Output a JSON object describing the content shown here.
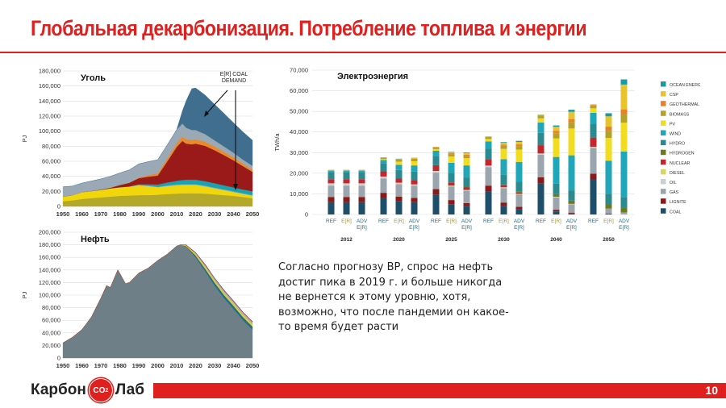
{
  "header": {
    "title": "Глобальная декарбонизация. Потребление топлива и энергии"
  },
  "note": {
    "text": "Согласно прогнозу BP, спрос на нефть достиг пика в 2019 г. и больше никогда не вернется к этому уровню, хотя, возможно, что после пандемии он какое-то время будет расти"
  },
  "footer": {
    "logo_left": "Карбон",
    "logo_badge": "CO",
    "logo_badge_sub": "2",
    "logo_right": "Лаб",
    "page_number": "10"
  },
  "colors": {
    "accent": "#e0201e"
  },
  "chart_data": [
    {
      "id": "coal",
      "type": "area",
      "title": "Уголь",
      "ylabel": "PJ",
      "ylim": [
        0,
        180000
      ],
      "yticks": [
        "0",
        "20,000",
        "40,000",
        "60,000",
        "80,000",
        "100,000",
        "120,000",
        "140,000",
        "160,000",
        "180,000"
      ],
      "xticks": [
        "1950",
        "1960",
        "1970",
        "1980",
        "1990",
        "2000",
        "2010",
        "2020",
        "2030",
        "2040",
        "2050"
      ],
      "annotation": "E[R] COAL DEMAND",
      "x": [
        1950,
        1955,
        1960,
        1965,
        1970,
        1975,
        1980,
        1985,
        1990,
        1995,
        2000,
        2005,
        2010,
        2013,
        2015,
        2018,
        2020,
        2025,
        2030,
        2035,
        2040,
        2045,
        2050
      ],
      "series": [
        {
          "color": "#b3a82a",
          "values": [
            7000,
            8000,
            10000,
            11000,
            12000,
            13000,
            14000,
            14500,
            15000,
            15000,
            15500,
            16500,
            17000,
            17500,
            17500,
            17500,
            17500,
            17000,
            16000,
            15000,
            14000,
            12500,
            11000
          ]
        },
        {
          "color": "#f2d60c",
          "values": [
            6000,
            7000,
            9000,
            9500,
            10000,
            11000,
            11500,
            12000,
            13000,
            12000,
            10000,
            10500,
            11000,
            11000,
            11000,
            11000,
            11000,
            9500,
            8000,
            6500,
            5000,
            4000,
            3000
          ]
        },
        {
          "color": "#8bb2b8",
          "values": [
            0,
            0,
            0,
            0,
            0,
            0,
            0,
            0,
            500,
            500,
            500,
            700,
            1000,
            1000,
            1000,
            1000,
            1000,
            1000,
            1000,
            1000,
            1000,
            1000,
            1000
          ]
        },
        {
          "color": "#17a3b2",
          "values": [
            0,
            0,
            0,
            0,
            0,
            0,
            0,
            0,
            1000,
            2000,
            3000,
            4000,
            5000,
            5500,
            6000,
            6000,
            6000,
            6000,
            5800,
            5500,
            5200,
            5000,
            5000
          ]
        },
        {
          "color": "#9a1a1a",
          "values": [
            0,
            0,
            0,
            200,
            500,
            1000,
            3000,
            5000,
            8000,
            10000,
            12000,
            28000,
            45000,
            52000,
            48000,
            47000,
            48000,
            47000,
            44000,
            40000,
            36000,
            31000,
            26000
          ]
        },
        {
          "color": "#e88a2c",
          "values": [
            0,
            0,
            0,
            0,
            0,
            0,
            0,
            0,
            1000,
            2000,
            3000,
            4000,
            5000,
            6000,
            6000,
            6000,
            6000,
            5500,
            5000,
            4500,
            4000,
            3500,
            3000
          ]
        },
        {
          "color": "#9aa9b5",
          "values": [
            13000,
            12000,
            12000,
            13000,
            14000,
            15000,
            16000,
            17000,
            18000,
            18000,
            18000,
            18000,
            18000,
            17000,
            15000,
            13000,
            12000,
            10000,
            8000,
            7000,
            6000,
            5000,
            5000
          ]
        },
        {
          "color": "#3f6e8f",
          "values": [
            0,
            0,
            0,
            0,
            0,
            0,
            0,
            0,
            0,
            0,
            0,
            0,
            0,
            17000,
            36000,
            55000,
            56000,
            52000,
            48000,
            44000,
            40000,
            37000,
            34000
          ]
        }
      ]
    },
    {
      "id": "oil",
      "type": "area",
      "title": "Нефть",
      "ylabel": "PJ",
      "ylim": [
        0,
        200000
      ],
      "yticks": [
        "0",
        "20,000",
        "40,000",
        "60,000",
        "80,000",
        "100,000",
        "120,000",
        "140,000",
        "160,000",
        "180,000",
        "200,000"
      ],
      "xticks": [
        "1950",
        "1960",
        "1970",
        "1980",
        "1990",
        "2000",
        "2010",
        "2020",
        "2030",
        "2040",
        "2050"
      ],
      "x": [
        1950,
        1955,
        1960,
        1965,
        1970,
        1973,
        1975,
        1979,
        1983,
        1985,
        1990,
        1995,
        2000,
        2005,
        2010,
        2012,
        2015,
        2020,
        2025,
        2030,
        2035,
        2040,
        2045,
        2050
      ],
      "series": [
        {
          "color": "#6f7f88",
          "values": [
            24000,
            33000,
            45000,
            65000,
            95000,
            115000,
            112000,
            140000,
            118000,
            120000,
            135000,
            143000,
            155000,
            165000,
            178000,
            180000,
            177000,
            160000,
            138000,
            115000,
            95000,
            78000,
            60000,
            45000
          ]
        },
        {
          "color": "#1d6f8e",
          "values": [
            0,
            0,
            0,
            0,
            0,
            0,
            0,
            0,
            0,
            0,
            0,
            0,
            0,
            0,
            0,
            0,
            1000,
            3000,
            4000,
            5000,
            5000,
            5000,
            5000,
            5000
          ]
        },
        {
          "color": "#f0d30a",
          "values": [
            0,
            0,
            0,
            0,
            0,
            0,
            0,
            0,
            0,
            0,
            0,
            0,
            0,
            0,
            0,
            0,
            1000,
            2000,
            3000,
            3000,
            3000,
            3000,
            3000,
            3000
          ]
        },
        {
          "color": "#aab4ba",
          "values": [
            0,
            0,
            0,
            0,
            0,
            0,
            0,
            0,
            0,
            0,
            0,
            0,
            0,
            0,
            0,
            0,
            500,
            2000,
            3000,
            3500,
            4000,
            4000,
            4000,
            4000
          ]
        },
        {
          "color": "#8b1f1f",
          "values": [
            0,
            0,
            0,
            0,
            0,
            0,
            0,
            0,
            0,
            0,
            0,
            0,
            0,
            0,
            0,
            0,
            500,
            800,
            1000,
            1000,
            1000,
            1000,
            1000,
            1000
          ]
        }
      ]
    },
    {
      "id": "electricity",
      "type": "bar",
      "stacked": true,
      "title": "Электроэнергия",
      "ylabel": "TWh/a",
      "ylim": [
        0,
        70000
      ],
      "yticks": [
        "0",
        "10,000",
        "20,000",
        "30,000",
        "40,000",
        "50,000",
        "60,000",
        "70,000"
      ],
      "years": [
        "2012",
        "2020",
        "2025",
        "2030",
        "2040",
        "2050"
      ],
      "scenarios": [
        {
          "lines": [
            "REF"
          ],
          "color": "#1b6f91"
        },
        {
          "lines": [
            "E[R]"
          ],
          "color": "#a49a2a"
        },
        {
          "lines": [
            "ADV",
            "E[R]"
          ],
          "color": "#1b6f91"
        }
      ],
      "legend_position": "right",
      "legend": [
        {
          "label": "OCEAN ENERGY",
          "color": "#1a9aa3"
        },
        {
          "label": "CSP",
          "color": "#e8c42c"
        },
        {
          "label": "GEOTHERMAL",
          "color": "#e8822a"
        },
        {
          "label": "BIOMASS",
          "color": "#b5a02a"
        },
        {
          "label": "PV",
          "color": "#f2dc20"
        },
        {
          "label": "WIND",
          "color": "#1fa6b8"
        },
        {
          "label": "HYDRO",
          "color": "#2a8a8f"
        },
        {
          "label": "HYDROGEN",
          "color": "#6b7a1e"
        },
        {
          "label": "NUCLEAR",
          "color": "#c2272d"
        },
        {
          "label": "DIESEL",
          "color": "#d9d65a"
        },
        {
          "label": "OIL",
          "color": "#c9d0d4"
        },
        {
          "label": "GAS",
          "color": "#9aa5ad"
        },
        {
          "label": "LIGNITE",
          "color": "#8a1a1a"
        },
        {
          "label": "COAL",
          "color": "#1d4f6b"
        }
      ],
      "stack_order": [
        "COAL",
        "LIGNITE",
        "GAS",
        "OIL",
        "DIESEL",
        "NUCLEAR",
        "HYDROGEN",
        "HYDRO",
        "WIND",
        "PV",
        "BIOMASS",
        "GEOTHERMAL",
        "CSP",
        "OCEAN ENERGY"
      ],
      "bars": [
        {
          "year": "2012",
          "scenario": "REF",
          "values": [
            6000,
            2500,
            5500,
            1000,
            100,
            2000,
            0,
            3500,
            500,
            100,
            400,
            60,
            10,
            0
          ]
        },
        {
          "year": "2012",
          "scenario": "E[R]",
          "values": [
            6000,
            2500,
            5500,
            1000,
            100,
            2000,
            0,
            3500,
            500,
            100,
            400,
            60,
            10,
            0
          ]
        },
        {
          "year": "2012",
          "scenario": "ADV E[R]",
          "values": [
            6000,
            2500,
            5500,
            1000,
            100,
            2000,
            0,
            3500,
            500,
            100,
            400,
            60,
            10,
            0
          ]
        },
        {
          "year": "2020",
          "scenario": "REF",
          "values": [
            8000,
            2500,
            7000,
            800,
            100,
            2500,
            0,
            4000,
            1500,
            500,
            700,
            100,
            50,
            0
          ]
        },
        {
          "year": "2020",
          "scenario": "E[R]",
          "values": [
            6500,
            2200,
            6000,
            600,
            100,
            2000,
            0,
            4200,
            2500,
            1500,
            1000,
            200,
            200,
            50
          ]
        },
        {
          "year": "2020",
          "scenario": "ADV E[R]",
          "values": [
            6000,
            2000,
            6000,
            500,
            100,
            2000,
            0,
            4200,
            3000,
            2000,
            1000,
            300,
            300,
            100
          ]
        },
        {
          "year": "2025",
          "scenario": "REF",
          "values": [
            9500,
            2800,
            8000,
            700,
            100,
            2800,
            0,
            4500,
            2500,
            800,
            900,
            150,
            80,
            0
          ]
        },
        {
          "year": "2025",
          "scenario": "E[R]",
          "values": [
            5000,
            2000,
            6500,
            400,
            100,
            1500,
            100,
            4500,
            5000,
            3000,
            1200,
            400,
            500,
            200
          ]
        },
        {
          "year": "2025",
          "scenario": "ADV E[R]",
          "values": [
            4000,
            1500,
            6000,
            300,
            100,
            1200,
            200,
            4500,
            6000,
            3500,
            1200,
            500,
            700,
            300
          ]
        },
        {
          "year": "2030",
          "scenario": "REF",
          "values": [
            11000,
            3000,
            9000,
            600,
            100,
            3200,
            0,
            5000,
            3500,
            1200,
            1000,
            200,
            100,
            0
          ]
        },
        {
          "year": "2030",
          "scenario": "E[R]",
          "values": [
            4000,
            1800,
            7000,
            300,
            100,
            1000,
            300,
            4800,
            7500,
            5000,
            1500,
            600,
            900,
            300
          ]
        },
        {
          "year": "2030",
          "scenario": "ADV E[R]",
          "values": [
            2500,
            1200,
            6000,
            200,
            100,
            700,
            500,
            4800,
            9500,
            6000,
            1700,
            800,
            1200,
            500
          ]
        },
        {
          "year": "2040",
          "scenario": "REF",
          "values": [
            15000,
            3000,
            11000,
            500,
            100,
            4000,
            0,
            6000,
            5000,
            2000,
            1200,
            300,
            200,
            100
          ]
        },
        {
          "year": "2040",
          "scenario": "E[R]",
          "values": [
            1500,
            800,
            6000,
            200,
            100,
            300,
            1000,
            5000,
            13000,
            9000,
            2500,
            1200,
            2000,
            600
          ]
        },
        {
          "year": "2040",
          "scenario": "ADV E[R]",
          "values": [
            500,
            400,
            4000,
            100,
            100,
            100,
            1500,
            5000,
            17000,
            13000,
            3000,
            1600,
            3500,
            1000
          ]
        },
        {
          "year": "2050",
          "scenario": "REF",
          "values": [
            17000,
            2800,
            12500,
            400,
            100,
            4500,
            0,
            6500,
            5500,
            2200,
            1300,
            300,
            200,
            100
          ]
        },
        {
          "year": "2050",
          "scenario": "E[R]",
          "values": [
            200,
            200,
            2500,
            0,
            0,
            0,
            2000,
            5200,
            16000,
            11000,
            3500,
            2000,
            5000,
            1500
          ]
        },
        {
          "year": "2050",
          "scenario": "ADV E[R]",
          "values": [
            0,
            0,
            1000,
            0,
            0,
            0,
            2500,
            5000,
            22000,
            14000,
            4000,
            2500,
            12000,
            2500
          ]
        }
      ]
    }
  ]
}
